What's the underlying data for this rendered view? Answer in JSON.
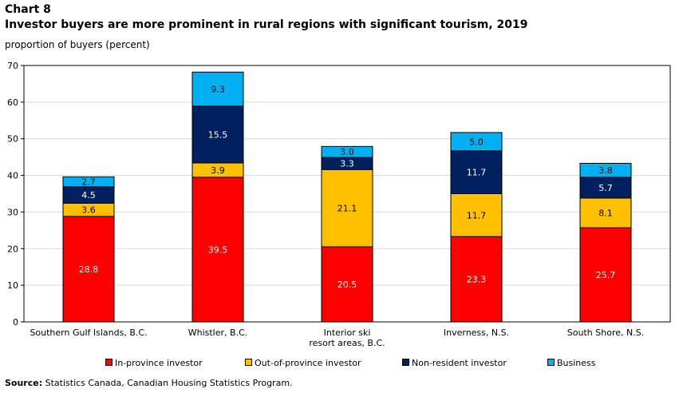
{
  "header": {
    "chart_number": "Chart 8",
    "title": "Investor buyers are more prominent in rural regions with significant tourism, 2019",
    "y_unit_label": "proportion of buyers (percent)"
  },
  "footer": {
    "source_label": "Source:",
    "source_text": "Statistics Canada, Canadian Housing Statistics Program."
  },
  "colors": {
    "in_province": "#ff0000",
    "out_of_province": "#ffc000",
    "non_resident": "#002060",
    "business": "#00b0f0"
  },
  "chart_data": {
    "type": "bar",
    "stacked": true,
    "title": "Investor buyers are more prominent in rural regions with significant tourism, 2019",
    "ylabel": "proportion of buyers (percent)",
    "ylim": [
      0,
      70
    ],
    "yticks": [
      0,
      10,
      20,
      30,
      40,
      50,
      60,
      70
    ],
    "grid": true,
    "legend_position": "bottom",
    "categories": [
      [
        "Southern Gulf Islands, B.C."
      ],
      [
        "Whistler, B.C."
      ],
      [
        "Interior ski",
        "resort areas, B.C."
      ],
      [
        "Inverness, N.S."
      ],
      [
        "South Shore, N.S."
      ]
    ],
    "series": [
      {
        "name": "In-province investor",
        "color": "#ff0000",
        "label_color": "#ffffff",
        "values": [
          28.8,
          39.5,
          20.5,
          23.3,
          25.7
        ]
      },
      {
        "name": "Out-of-province investor",
        "color": "#ffc000",
        "label_color": "#000000",
        "values": [
          3.6,
          3.9,
          21.1,
          11.7,
          8.1
        ]
      },
      {
        "name": "Non-resident investor",
        "color": "#002060",
        "label_color": "#ffffff",
        "values": [
          4.5,
          15.5,
          3.3,
          11.7,
          5.7
        ]
      },
      {
        "name": "Business",
        "color": "#00b0f0",
        "label_color": "#000000",
        "values": [
          2.7,
          9.3,
          3.0,
          5.0,
          3.8
        ]
      }
    ]
  }
}
